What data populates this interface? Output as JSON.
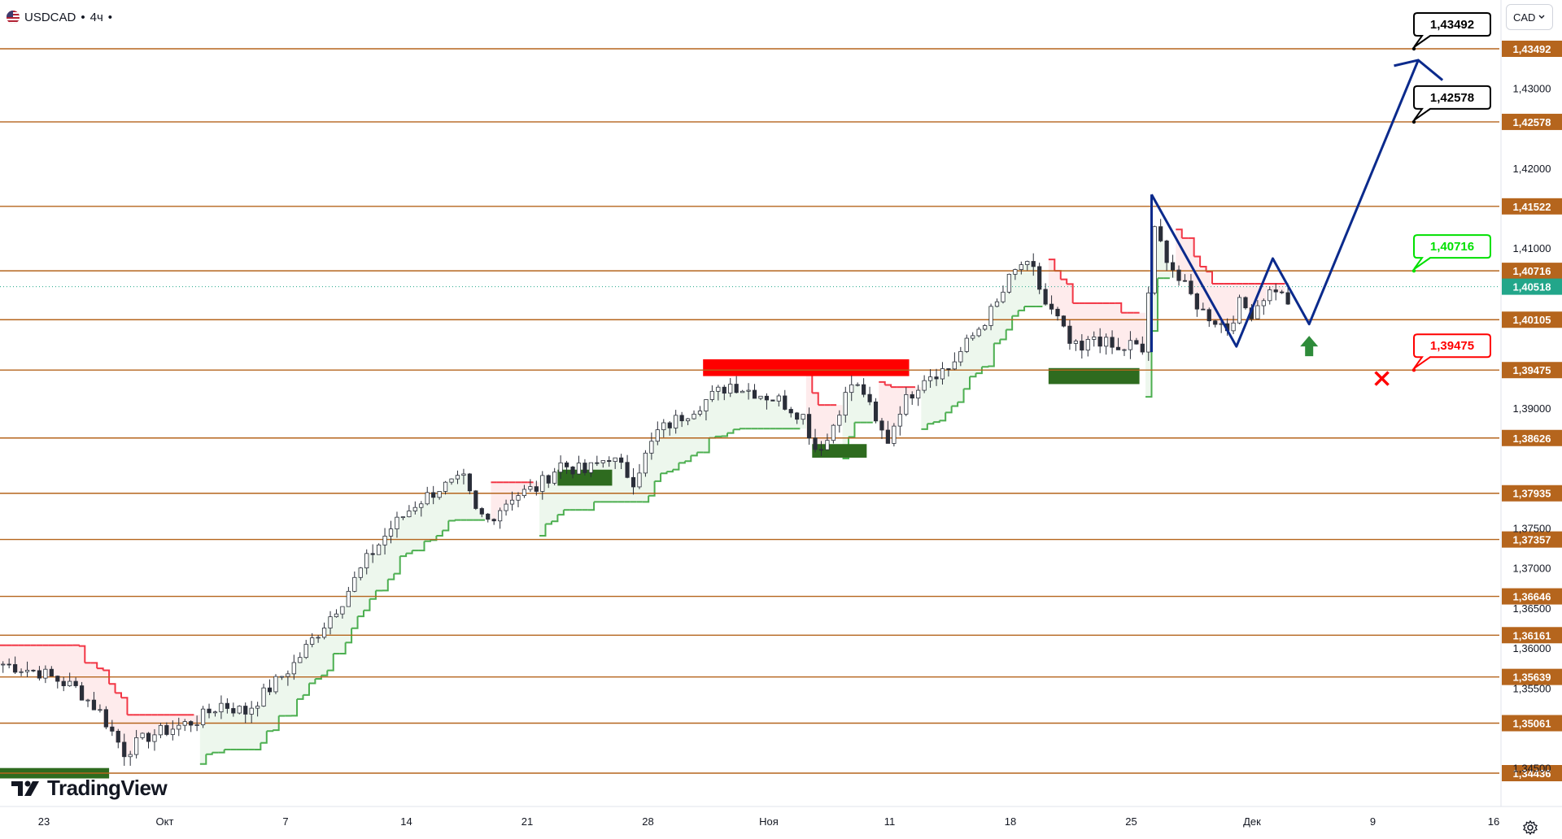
{
  "header": {
    "symbol": "USDCAD",
    "separator1": "•",
    "interval": "4ч",
    "separator2": "•"
  },
  "currency_button": {
    "label": "CAD",
    "icon": "chevron-down-icon"
  },
  "logo": {
    "text": "TradingView",
    "icon": "tradingview-logo-icon"
  },
  "settings": {
    "icon": "gear-icon"
  },
  "colors": {
    "level": "#b5651d",
    "level_label_bg": "#b5651d",
    "up": "#089981",
    "down": "#f23645",
    "candle_dark": "#2a2e39",
    "projection": "#0b2a8c",
    "trail_green": "#4caf50",
    "trail_red": "#f23645",
    "box_green": "#2e6b1f",
    "box_red": "#ff0000",
    "target_green": "#00e000",
    "stop_red": "#ff0000",
    "current_bg": "#22a68a"
  },
  "chart_data": {
    "type": "candlestick",
    "symbol": "USDCAD",
    "timeframe": "4ч",
    "ylim": [
      1.34436,
      1.436
    ],
    "y_ticks": [
      "1,43000",
      "1,42000",
      "1,41000",
      "1,39000",
      "1,37500",
      "1,37000",
      "1,36500",
      "1,36000",
      "1,35500",
      "1,34500"
    ],
    "y_tick_values": [
      1.43,
      1.42,
      1.41,
      1.39,
      1.375,
      1.37,
      1.365,
      1.36,
      1.355,
      1.345
    ],
    "x_ticks": [
      "23",
      "Окт",
      "7",
      "14",
      "21",
      "28",
      "Ноя",
      "11",
      "18",
      "25",
      "Дек",
      "9",
      "16"
    ],
    "levels": [
      {
        "value": 1.43492,
        "label": "1,43492"
      },
      {
        "value": 1.42578,
        "label": "1,42578"
      },
      {
        "value": 1.41522,
        "label": "1,41522"
      },
      {
        "value": 1.40716,
        "label": "1,40716"
      },
      {
        "value": 1.40105,
        "label": "1,40105"
      },
      {
        "value": 1.39475,
        "label": "1,39475"
      },
      {
        "value": 1.38626,
        "label": "1,38626"
      },
      {
        "value": 1.37935,
        "label": "1,37935"
      },
      {
        "value": 1.37357,
        "label": "1,37357"
      },
      {
        "value": 1.36646,
        "label": "1,36646"
      },
      {
        "value": 1.36161,
        "label": "1,36161"
      },
      {
        "value": 1.35639,
        "label": "1,35639"
      },
      {
        "value": 1.35061,
        "label": "1,35061"
      },
      {
        "value": 1.34436,
        "label": "1,34436"
      }
    ],
    "current_price": {
      "value": 1.40518,
      "label": "1,40518"
    },
    "callouts": [
      {
        "value": 1.43492,
        "label": "1,43492",
        "kind": "target"
      },
      {
        "value": 1.42578,
        "label": "1,42578",
        "kind": "target"
      },
      {
        "value": 1.40716,
        "label": "1,40716",
        "kind": "take-profit"
      },
      {
        "value": 1.39475,
        "label": "1,39475",
        "kind": "stop-loss"
      }
    ],
    "close_path": [
      [
        0,
        1.358
      ],
      [
        6,
        1.357
      ],
      [
        12,
        1.355
      ],
      [
        16,
        1.352
      ],
      [
        20,
        1.347
      ],
      [
        24,
        1.349
      ],
      [
        28,
        1.35
      ],
      [
        32,
        1.351
      ],
      [
        36,
        1.353
      ],
      [
        40,
        1.352
      ],
      [
        44,
        1.355
      ],
      [
        48,
        1.358
      ],
      [
        52,
        1.362
      ],
      [
        56,
        1.366
      ],
      [
        60,
        1.371
      ],
      [
        64,
        1.375
      ],
      [
        68,
        1.378
      ],
      [
        72,
        1.38
      ],
      [
        76,
        1.381
      ],
      [
        78,
        1.377
      ],
      [
        80,
        1.376
      ],
      [
        84,
        1.379
      ],
      [
        88,
        1.38
      ],
      [
        92,
        1.383
      ],
      [
        96,
        1.382
      ],
      [
        100,
        1.384
      ],
      [
        104,
        1.381
      ],
      [
        108,
        1.387
      ],
      [
        112,
        1.389
      ],
      [
        116,
        1.391
      ],
      [
        120,
        1.393
      ],
      [
        124,
        1.392
      ],
      [
        128,
        1.391
      ],
      [
        132,
        1.389
      ],
      [
        134,
        1.385
      ],
      [
        136,
        1.386
      ],
      [
        138,
        1.39
      ],
      [
        140,
        1.393
      ],
      [
        142,
        1.392
      ],
      [
        144,
        1.388
      ],
      [
        146,
        1.386
      ],
      [
        148,
        1.39
      ],
      [
        150,
        1.392
      ],
      [
        152,
        1.394
      ],
      [
        156,
        1.395
      ],
      [
        160,
        1.399
      ],
      [
        164,
        1.403
      ],
      [
        166,
        1.406
      ],
      [
        168,
        1.408
      ],
      [
        170,
        1.407
      ],
      [
        172,
        1.403
      ],
      [
        174,
        1.401
      ],
      [
        176,
        1.398
      ],
      [
        178,
        1.397
      ],
      [
        180,
        1.399
      ],
      [
        182,
        1.398
      ],
      [
        184,
        1.397
      ],
      [
        186,
        1.398
      ],
      [
        188,
        1.397
      ],
      [
        190,
        1.412
      ],
      [
        192,
        1.409
      ],
      [
        194,
        1.406
      ],
      [
        196,
        1.404
      ],
      [
        198,
        1.402
      ],
      [
        200,
        1.401
      ],
      [
        202,
        1.4
      ],
      [
        204,
        1.403
      ],
      [
        206,
        1.402
      ],
      [
        208,
        1.404
      ],
      [
        210,
        1.405
      ],
      [
        212,
        1.403
      ]
    ],
    "projection": [
      [
        190,
        1.4167
      ],
      [
        204,
        1.3977
      ],
      [
        210,
        1.4087
      ],
      [
        216,
        1.4005
      ],
      [
        234,
        1.4335
      ],
      [
        230,
        1.4328
      ],
      [
        238,
        1.431
      ]
    ],
    "buy_arrow": {
      "x": 216,
      "y": 1.397
    },
    "stop_marker": {
      "x": 228,
      "y": 1.3937
    },
    "zones": [
      {
        "kind": "supply",
        "x0": 116,
        "x1": 150,
        "y0": 1.3961,
        "y1": 1.394
      },
      {
        "kind": "demand",
        "x0": 0,
        "x1": 18,
        "y0": 1.345,
        "y1": 1.3437
      },
      {
        "kind": "demand",
        "x0": 92,
        "x1": 101,
        "y0": 1.3823,
        "y1": 1.3803
      },
      {
        "kind": "demand",
        "x0": 134,
        "x1": 143,
        "y0": 1.3855,
        "y1": 1.3838
      },
      {
        "kind": "demand",
        "x0": 173,
        "x1": 188,
        "y0": 1.395,
        "y1": 1.393
      }
    ]
  }
}
